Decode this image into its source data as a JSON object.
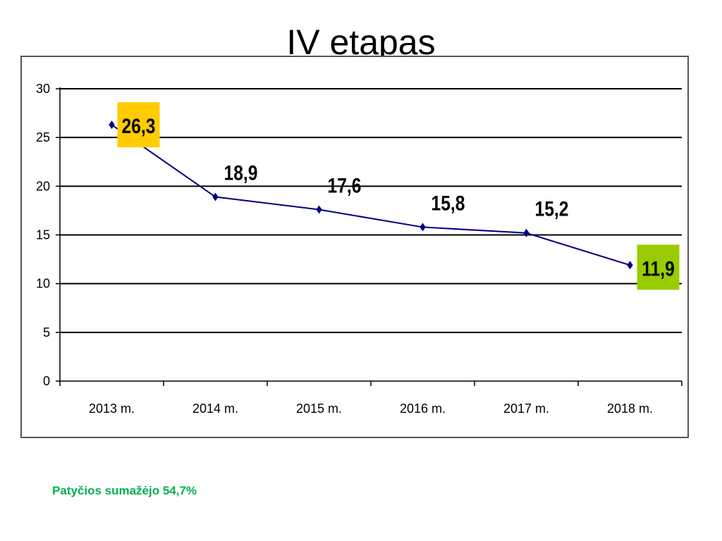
{
  "slide": {
    "title": "IV etapas",
    "footnote": "Patyčios sumažėjo 54,7%"
  },
  "colors": {
    "line": "#000080",
    "grid": "#000000",
    "highlight_first": "#FFCC00",
    "highlight_last": "#99CC00",
    "footnote": "#00B050"
  },
  "chart_data": {
    "type": "line",
    "categories": [
      "2013 m.",
      "2014 m.",
      "2015 m.",
      "2016 m.",
      "2017 m.",
      "2018 m."
    ],
    "series": [
      {
        "values": [
          26.3,
          18.9,
          17.6,
          15.8,
          15.2,
          11.9
        ],
        "data_labels": [
          "26,3",
          "18,9",
          "17,6",
          "15,8",
          "15,2",
          "11,9"
        ]
      }
    ],
    "highlighted_labels": {
      "0": "highlight_first",
      "5": "highlight_last"
    },
    "ylim": [
      0,
      30
    ],
    "yticks": [
      0,
      5,
      10,
      15,
      20,
      25,
      30
    ],
    "ytick_labels": [
      "0",
      "5",
      "10",
      "15",
      "20",
      "25",
      "30"
    ],
    "grid": true,
    "legend": false,
    "marker": "diamond"
  }
}
